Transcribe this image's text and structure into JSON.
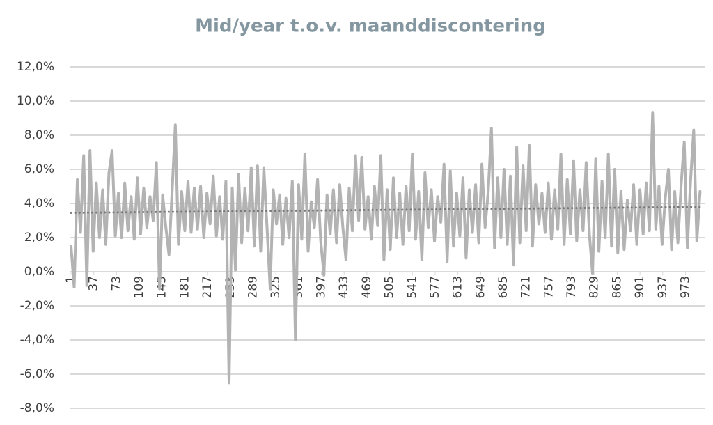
{
  "chart_data": {
    "type": "line",
    "title": "Mid/year t.o.v. maanddiscontering",
    "xlim": [
      1,
      1000
    ],
    "xticks": [
      1,
      37,
      73,
      109,
      145,
      181,
      217,
      253,
      289,
      325,
      361,
      397,
      433,
      469,
      505,
      541,
      577,
      613,
      649,
      685,
      721,
      757,
      793,
      829,
      865,
      901,
      937,
      973
    ],
    "ylim": [
      -8,
      12
    ],
    "yticks": [
      {
        "value": -8,
        "label": "-8,0%"
      },
      {
        "value": -6,
        "label": "-6,0%"
      },
      {
        "value": -4,
        "label": "-4,0%"
      },
      {
        "value": -2,
        "label": "-2,0%"
      },
      {
        "value": 0,
        "label": "0,0%"
      },
      {
        "value": 2,
        "label": "2,0%"
      },
      {
        "value": 4,
        "label": "4,0%"
      },
      {
        "value": 6,
        "label": "6,0%"
      },
      {
        "value": 8,
        "label": "8,0%"
      },
      {
        "value": 10,
        "label": "10,0%"
      },
      {
        "value": 12,
        "label": "12,0%"
      }
    ],
    "grid": true,
    "series": [
      {
        "color": "#b3b3b3",
        "line_style": "solid",
        "x": [
          1,
          6,
          11,
          16,
          21,
          26,
          31,
          36,
          41,
          46,
          51,
          56,
          61,
          66,
          71,
          76,
          81,
          86,
          91,
          96,
          101,
          106,
          111,
          116,
          121,
          126,
          131,
          136,
          141,
          146,
          151,
          156,
          161,
          166,
          171,
          176,
          181,
          186,
          191,
          196,
          201,
          206,
          211,
          216,
          221,
          226,
          231,
          236,
          241,
          246,
          251,
          256,
          261,
          266,
          271,
          276,
          281,
          286,
          291,
          296,
          301,
          306,
          311,
          316,
          321,
          326,
          331,
          336,
          341,
          346,
          351,
          356,
          361,
          366,
          371,
          376,
          381,
          386,
          391,
          396,
          401,
          406,
          411,
          416,
          421,
          426,
          431,
          436,
          441,
          446,
          451,
          456,
          461,
          466,
          471,
          476,
          481,
          486,
          491,
          496,
          501,
          506,
          511,
          516,
          521,
          526,
          531,
          536,
          541,
          546,
          551,
          556,
          561,
          566,
          571,
          576,
          581,
          586,
          591,
          596,
          601,
          606,
          611,
          616,
          621,
          626,
          631,
          636,
          641,
          646,
          651,
          656,
          661,
          666,
          671,
          676,
          681,
          686,
          691,
          696,
          701,
          706,
          711,
          716,
          721,
          726,
          731,
          736,
          741,
          746,
          751,
          756,
          761,
          766,
          771,
          776,
          781,
          786,
          791,
          796,
          801,
          806,
          811,
          816,
          821,
          826,
          831,
          836,
          841,
          846,
          851,
          856,
          861,
          866,
          871,
          876,
          881,
          886,
          891,
          896,
          901,
          906,
          911,
          916,
          921,
          926,
          931,
          936,
          941,
          946,
          951,
          956,
          961,
          966,
          971,
          976,
          981,
          986,
          991,
          996
        ],
        "values": [
          1.5,
          -0.9,
          5.4,
          2.3,
          6.8,
          -0.8,
          7.1,
          1.2,
          5.2,
          2.0,
          4.8,
          1.6,
          5.8,
          7.1,
          2.1,
          4.6,
          2.0,
          5.2,
          2.4,
          4.4,
          1.9,
          5.5,
          2.2,
          4.9,
          2.6,
          4.4,
          3.0,
          6.4,
          -1.0,
          4.5,
          2.6,
          1.0,
          4.8,
          8.6,
          1.6,
          4.7,
          2.4,
          5.3,
          2.3,
          4.9,
          2.5,
          5.0,
          2.0,
          4.6,
          2.8,
          5.6,
          2.1,
          4.4,
          1.9,
          5.3,
          -6.5,
          4.9,
          0.1,
          5.7,
          1.7,
          4.9,
          2.4,
          6.1,
          1.5,
          6.2,
          1.2,
          6.1,
          2.6,
          -1.0,
          4.8,
          2.8,
          4.5,
          1.6,
          4.3,
          2.0,
          5.3,
          -4.0,
          5.1,
          1.9,
          6.9,
          1.2,
          4.1,
          2.6,
          5.4,
          1.8,
          -0.2,
          4.5,
          2.2,
          4.8,
          1.7,
          5.1,
          2.6,
          0.7,
          4.9,
          2.4,
          6.8,
          3.0,
          6.7,
          2.5,
          4.4,
          1.9,
          5.0,
          2.7,
          6.8,
          0.7,
          4.8,
          1.3,
          5.5,
          2.0,
          4.6,
          1.6,
          5.0,
          2.4,
          6.9,
          1.9,
          4.7,
          0.7,
          5.8,
          2.6,
          4.8,
          1.8,
          4.4,
          2.9,
          6.3,
          0.6,
          5.9,
          1.5,
          4.6,
          2.1,
          5.5,
          0.8,
          4.8,
          2.3,
          5.1,
          1.7,
          6.3,
          2.6,
          4.7,
          8.4,
          1.4,
          5.5,
          2.0,
          6.0,
          1.6,
          5.6,
          0.4,
          7.3,
          1.7,
          6.2,
          2.4,
          7.4,
          1.5,
          5.1,
          2.8,
          4.6,
          2.3,
          5.2,
          1.9,
          4.8,
          2.5,
          6.9,
          1.6,
          5.4,
          2.2,
          6.5,
          1.8,
          4.8,
          2.4,
          6.4,
          2.2,
          -0.1,
          6.6,
          1.2,
          5.3,
          2.0,
          6.9,
          1.5,
          6.0,
          1.1,
          4.7,
          1.3,
          4.2,
          2.4,
          5.1,
          1.6,
          4.8,
          2.2,
          5.2,
          2.4,
          9.3,
          2.5,
          5.0,
          1.6,
          4.3,
          6.0,
          1.3,
          4.7,
          1.7,
          5.0,
          7.6,
          1.4,
          5.3,
          8.3,
          1.8,
          4.7
        ]
      },
      {
        "color": "#7a7a7a",
        "line_style": "dotted",
        "x": [
          1,
          1000
        ],
        "values": [
          3.45,
          3.8
        ]
      }
    ]
  }
}
